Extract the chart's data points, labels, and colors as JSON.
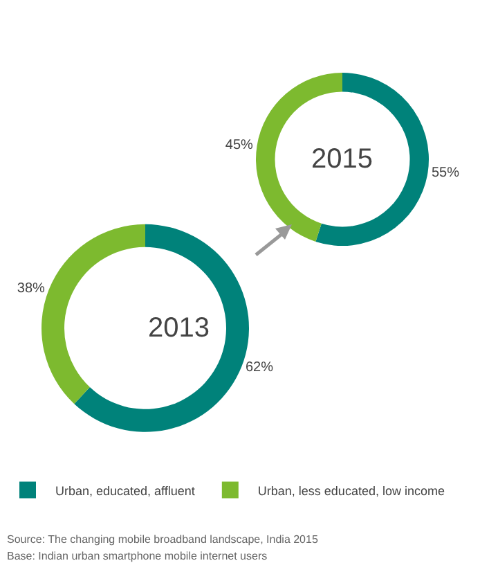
{
  "chart_data": [
    {
      "type": "donut",
      "categories": [
        null,
        null
      ],
      "values": [
        55,
        45
      ],
      "value_labels": [
        "55%",
        "45%"
      ],
      "colors": [
        "#00827a",
        "#7dba2f"
      ],
      "annotations": [
        "2015"
      ]
    },
    {
      "type": "donut",
      "categories": [
        "Urban, educated, affluent",
        "Urban, less educated, low income"
      ],
      "values": [
        62,
        38
      ],
      "value_labels": [
        "62%",
        "38%"
      ],
      "colors": [
        "#00827a",
        "#7dba2f"
      ],
      "legend": "bottom",
      "annotations": [
        "2013",
        "Source: The changing mobile broadband landscape, India 2015",
        "Base: Indian urban smartphone mobile internet users"
      ]
    }
  ]
}
